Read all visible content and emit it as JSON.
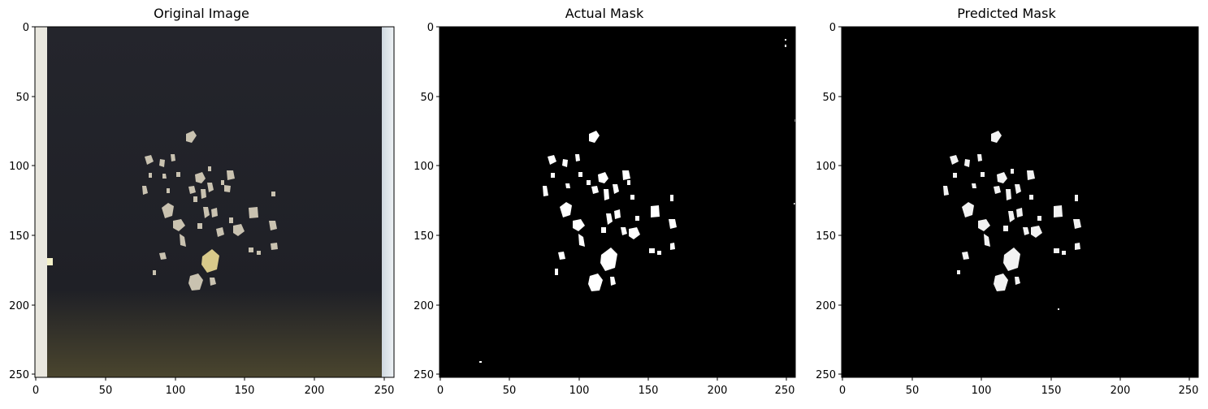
{
  "figure": {
    "panels": [
      {
        "id": "original",
        "title": "Original Image"
      },
      {
        "id": "actual",
        "title": "Actual Mask"
      },
      {
        "id": "predicted",
        "title": "Predicted Mask"
      }
    ],
    "x_ticks": [
      "0",
      "50",
      "100",
      "150",
      "200",
      "250"
    ],
    "y_ticks": [
      "0",
      "50",
      "100",
      "150",
      "200",
      "250"
    ],
    "colors": {
      "background_dark": "#1f2027",
      "mask_bg": "#000000",
      "mask_fg": "#ffffff",
      "rock": "#c9c2b0",
      "rock_gold": "#d8c98a"
    }
  }
}
